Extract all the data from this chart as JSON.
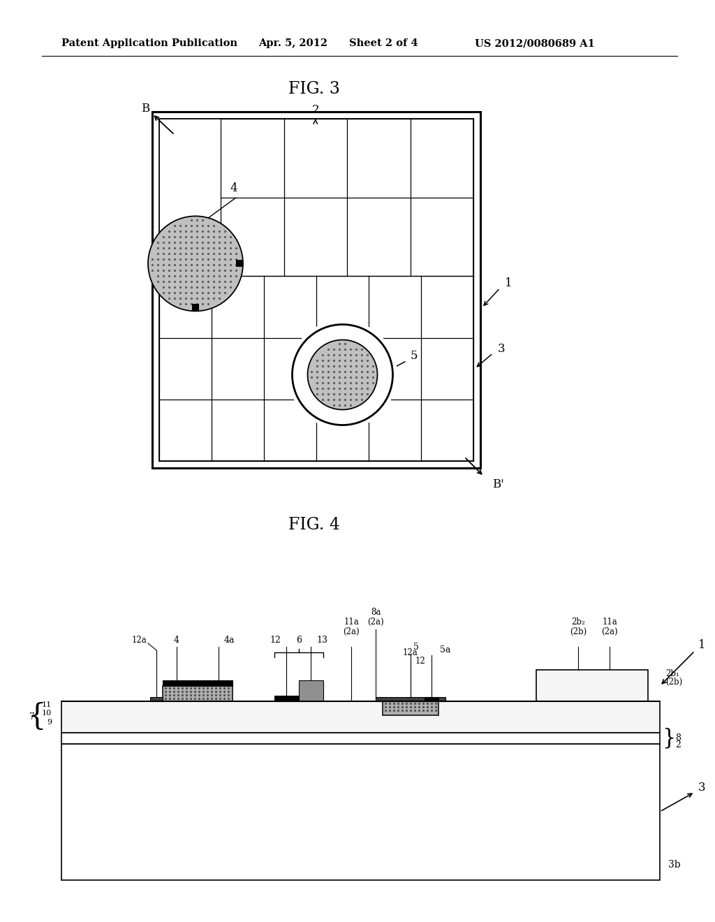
{
  "header_pub": "Patent Application Publication",
  "header_date": "Apr. 5, 2012",
  "header_sheet": "Sheet 2 of 4",
  "header_patent": "US 2012/0080689 A1",
  "fig3_title": "FIG. 3",
  "fig4_title": "FIG. 4",
  "bg_color": "#ffffff",
  "lc": "#000000",
  "gray_fill": "#c8c8c8",
  "dark_gray": "#686868",
  "hatch_color": "#444444"
}
